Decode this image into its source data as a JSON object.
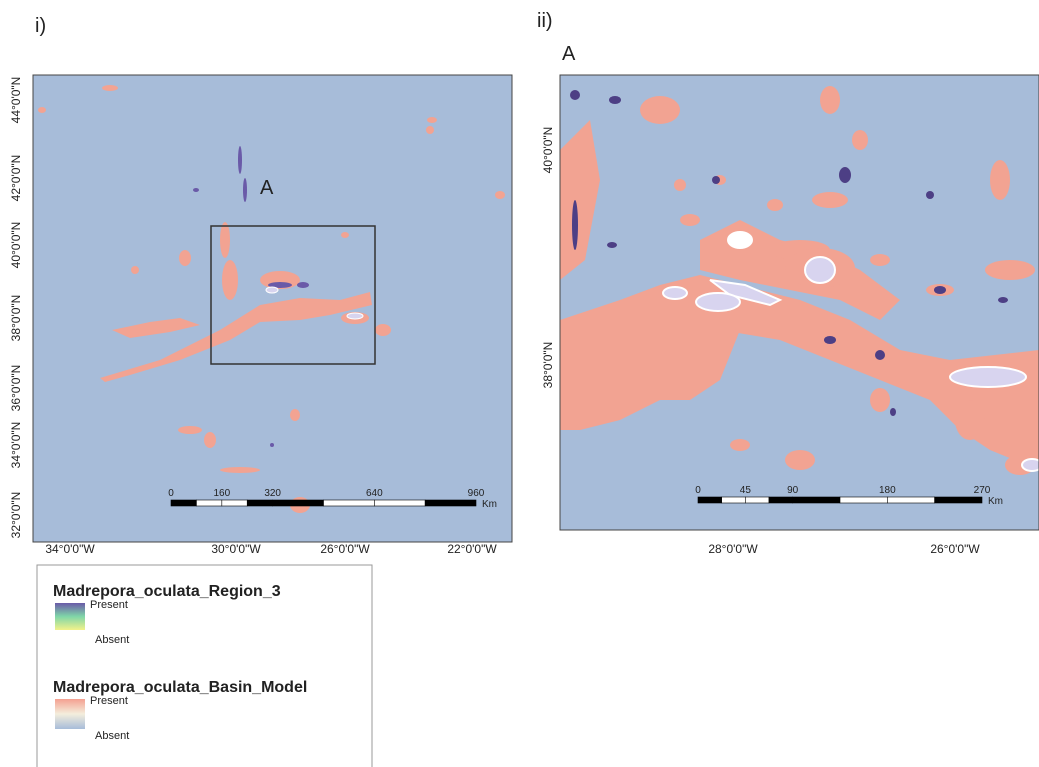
{
  "panel_i": {
    "label": "i)",
    "inset_label": "A",
    "y_axis_labels": [
      "44°0'0\"N",
      "42°0'0\"N",
      "40°0'0\"N",
      "38°0'0\"N",
      "36°0'0\"N",
      "34°0'0\"N",
      "32°0'0\"N"
    ],
    "x_axis_labels": [
      "34°0'0\"W",
      "30°0'0\"W",
      "26°0'0\"W",
      "22°0'0\"W"
    ],
    "scale_bar": {
      "ticks": [
        0,
        160,
        320,
        640,
        960
      ],
      "unit": "Km"
    }
  },
  "panel_ii": {
    "label": "ii)",
    "sublabel": "A",
    "y_axis_labels": [
      "40°0'0\"N",
      "38°0'0\"N"
    ],
    "x_axis_labels": [
      "28°0'0\"W",
      "26°0'0\"W"
    ],
    "scale_bar": {
      "ticks": [
        0,
        45,
        90,
        180,
        270
      ],
      "unit": "Km"
    }
  },
  "legend": {
    "groups": [
      {
        "title": "Madrepora_oculata_Region_3",
        "high": "Present",
        "low": "Absent"
      },
      {
        "title": "Madrepora_oculata_Basin_Model",
        "high": "Present",
        "low": "Absent"
      }
    ]
  }
}
